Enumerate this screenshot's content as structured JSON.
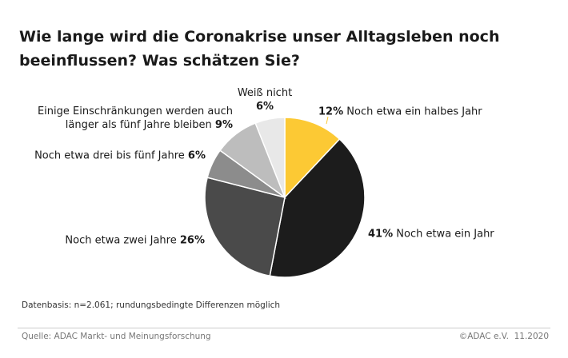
{
  "chart_data": {
    "type": "pie",
    "title": "Wie lange wird die Coronakrise unser Alltagsleben noch beeinflussen? Was schätzen Sie?",
    "categories": [
      "Noch etwa ein halbes Jahr",
      "Noch etwa ein Jahr",
      "Noch etwa zwei Jahre",
      "Noch etwa drei bis fünf Jahre",
      "Einige Einschränkungen werden auch länger als fünf Jahre bleiben",
      "Weiß nicht"
    ],
    "values": [
      12,
      41,
      26,
      6,
      9,
      6
    ],
    "value_labels": [
      "12%",
      "41%",
      "26%",
      "6%",
      "9%",
      "6%"
    ],
    "colors": [
      "#fcc934",
      "#1c1c1c",
      "#4a4a4a",
      "#8c8c8c",
      "#bdbdbd",
      "#e8e8e8"
    ],
    "note": "Datenbasis: n=2.061; rundungsbedingte Differenzen möglich",
    "source": "Quelle: ADAC Markt- und Meinungsforschung",
    "copyright": "©ADAC e.V.  11.2020"
  }
}
